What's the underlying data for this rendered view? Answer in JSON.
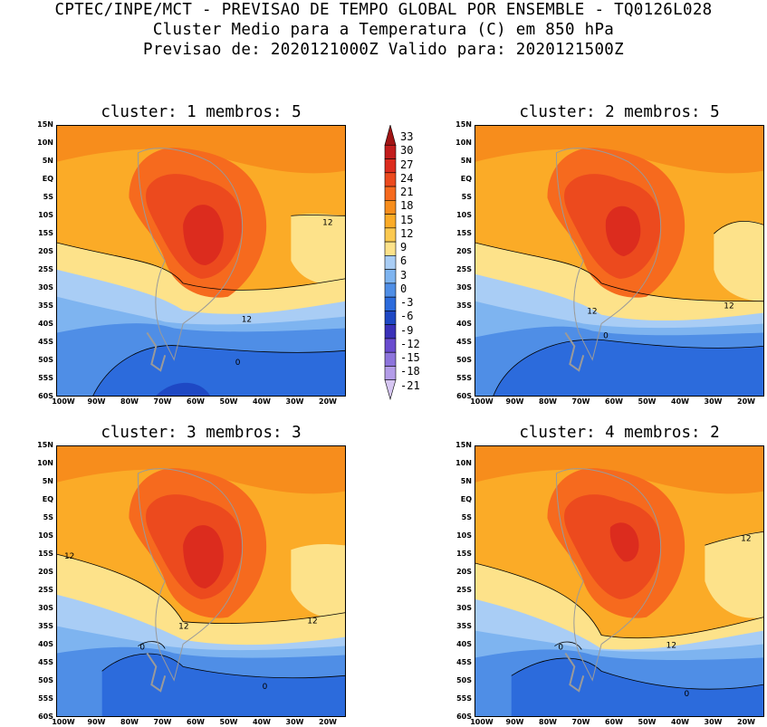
{
  "header": {
    "line1": "CPTEC/INPE/MCT - PREVISAO DE TEMPO GLOBAL POR ENSEMBLE - TQ0126L028",
    "line2": "Cluster Medio para a Temperatura (C) em 850 hPa",
    "line3": "Previsao de: 2020121000Z   Valido para: 2020121500Z"
  },
  "panels": [
    {
      "title": "cluster: 1  membros: 5",
      "contour_labels": [
        "12",
        "12",
        "0"
      ]
    },
    {
      "title": "cluster: 2  membros: 5",
      "contour_labels": [
        "12",
        "12",
        "0"
      ]
    },
    {
      "title": "cluster: 3  membros: 3",
      "contour_labels": [
        "12",
        "12",
        "12",
        "0",
        "0"
      ]
    },
    {
      "title": "cluster: 4  membros: 2",
      "contour_labels": [
        "12",
        "12",
        "0",
        "0"
      ]
    }
  ],
  "lat_labels": [
    "15N",
    "10N",
    "5N",
    "EQ",
    "5S",
    "10S",
    "15S",
    "20S",
    "25S",
    "30S",
    "35S",
    "40S",
    "45S",
    "50S",
    "55S",
    "60S"
  ],
  "lon_labels": [
    "100W",
    "90W",
    "80W",
    "70W",
    "60W",
    "50W",
    "40W",
    "30W",
    "20W"
  ],
  "colorbar": {
    "labels": [
      "33",
      "30",
      "27",
      "24",
      "21",
      "18",
      "15",
      "12",
      "9",
      "6",
      "3",
      "0",
      "-3",
      "-6",
      "-9",
      "-12",
      "-15",
      "-18",
      "-21"
    ],
    "colors": [
      "#a01414",
      "#c21c1c",
      "#dc2c1e",
      "#ec4a1e",
      "#f66a1e",
      "#f78d1c",
      "#fbab27",
      "#fbc950",
      "#fde28a",
      "#a9cdf5",
      "#7eb4f0",
      "#4f8ee6",
      "#2c6bdc",
      "#1e48c4",
      "#3a31b8",
      "#6a4ccf",
      "#8d74dc",
      "#b39ce8",
      "#d6c6f2"
    ]
  }
}
